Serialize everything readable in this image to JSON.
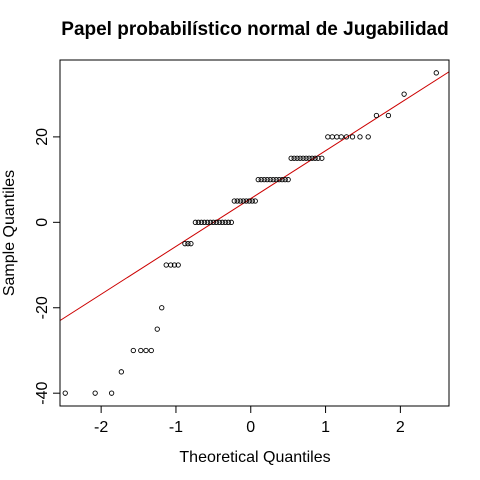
{
  "chart_data": {
    "type": "scatter",
    "title": "Papel probabilístico normal de Jugabilidad",
    "xlabel": "Theoretical Quantiles",
    "ylabel": "Sample Quantiles",
    "xlim": [
      -2.55,
      2.65
    ],
    "ylim": [
      -43,
      38
    ],
    "xticks": [
      -2,
      -1,
      0,
      1,
      2
    ],
    "yticks": [
      -40,
      -20,
      0,
      20
    ],
    "grid": false,
    "reference_line": {
      "color": "#cc0000",
      "intercept": 5.56,
      "slope": 11.2
    },
    "points": [
      [
        -2.48,
        -40
      ],
      [
        -2.08,
        -40
      ],
      [
        -1.86,
        -40
      ],
      [
        -1.73,
        -35
      ],
      [
        -1.57,
        -30
      ],
      [
        -1.47,
        -30
      ],
      [
        -1.4,
        -30
      ],
      [
        -1.33,
        -30
      ],
      [
        -1.25,
        -25
      ],
      [
        -1.19,
        -20
      ],
      [
        -1.13,
        -10
      ],
      [
        -1.07,
        -10
      ],
      [
        -1.02,
        -10
      ],
      [
        -0.97,
        -10
      ],
      [
        -0.88,
        -5
      ],
      [
        -0.84,
        -5
      ],
      [
        -0.8,
        -5
      ],
      [
        -0.74,
        0
      ],
      [
        -0.7,
        0
      ],
      [
        -0.66,
        0
      ],
      [
        -0.62,
        0
      ],
      [
        -0.58,
        0
      ],
      [
        -0.54,
        0
      ],
      [
        -0.5,
        0
      ],
      [
        -0.46,
        0
      ],
      [
        -0.42,
        0
      ],
      [
        -0.38,
        0
      ],
      [
        -0.34,
        0
      ],
      [
        -0.3,
        0
      ],
      [
        -0.26,
        0
      ],
      [
        -0.22,
        5
      ],
      [
        -0.18,
        5
      ],
      [
        -0.14,
        5
      ],
      [
        -0.1,
        5
      ],
      [
        -0.06,
        5
      ],
      [
        -0.02,
        5
      ],
      [
        0.02,
        5
      ],
      [
        0.06,
        5
      ],
      [
        0.1,
        10
      ],
      [
        0.14,
        10
      ],
      [
        0.18,
        10
      ],
      [
        0.22,
        10
      ],
      [
        0.26,
        10
      ],
      [
        0.3,
        10
      ],
      [
        0.34,
        10
      ],
      [
        0.38,
        10
      ],
      [
        0.42,
        10
      ],
      [
        0.46,
        10
      ],
      [
        0.5,
        10
      ],
      [
        0.54,
        15
      ],
      [
        0.58,
        15
      ],
      [
        0.62,
        15
      ],
      [
        0.66,
        15
      ],
      [
        0.7,
        15
      ],
      [
        0.74,
        15
      ],
      [
        0.78,
        15
      ],
      [
        0.82,
        15
      ],
      [
        0.86,
        15
      ],
      [
        0.9,
        15
      ],
      [
        0.95,
        15
      ],
      [
        1.03,
        20
      ],
      [
        1.09,
        20
      ],
      [
        1.15,
        20
      ],
      [
        1.21,
        20
      ],
      [
        1.28,
        20
      ],
      [
        1.36,
        20
      ],
      [
        1.46,
        20
      ],
      [
        1.57,
        20
      ],
      [
        1.68,
        25
      ],
      [
        1.84,
        25
      ],
      [
        2.05,
        30
      ],
      [
        2.48,
        35
      ]
    ]
  }
}
